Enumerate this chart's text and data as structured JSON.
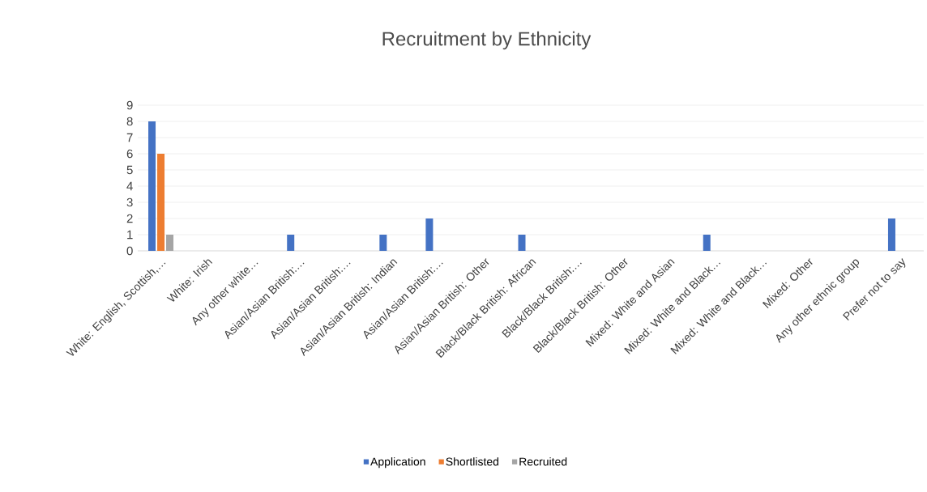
{
  "chart_data": {
    "type": "bar",
    "title": "Recruitment by Ethnicity",
    "categories": [
      "White: English, Scottish,…",
      "White: Irish",
      "Any other white…",
      "Asian/Asian British:…",
      "Asian/Asian British:…",
      "Asian/Asian British: Indian",
      "Asian/Asian British:…",
      "Asian/Asian British: Other",
      "Black/Black British: African",
      "Black/Black British:…",
      "Black/Black British: Other",
      "Mixed: White and Asian",
      "Mixed: White and Black…",
      "Mixed: White and Black…",
      "Mixed: Other",
      "Any other ethnic group",
      "Prefer not to say"
    ],
    "series": [
      {
        "name": "Application",
        "color": "#4472c4",
        "values": [
          8,
          0,
          0,
          1,
          0,
          1,
          2,
          0,
          1,
          0,
          0,
          0,
          1,
          0,
          0,
          0,
          2
        ]
      },
      {
        "name": "Shortlisted",
        "color": "#ed7d31",
        "values": [
          6,
          0,
          0,
          0,
          0,
          0,
          0,
          0,
          0,
          0,
          0,
          0,
          0,
          0,
          0,
          0,
          0
        ]
      },
      {
        "name": "Recruited",
        "color": "#a5a5a5",
        "values": [
          1,
          0,
          0,
          0,
          0,
          0,
          0,
          0,
          0,
          0,
          0,
          0,
          0,
          0,
          0,
          0,
          0
        ]
      }
    ],
    "ylim": [
      0,
      9
    ],
    "yticks": [
      0,
      1,
      2,
      3,
      4,
      5,
      6,
      7,
      8,
      9
    ],
    "grid": "y",
    "legend": "bottom"
  }
}
